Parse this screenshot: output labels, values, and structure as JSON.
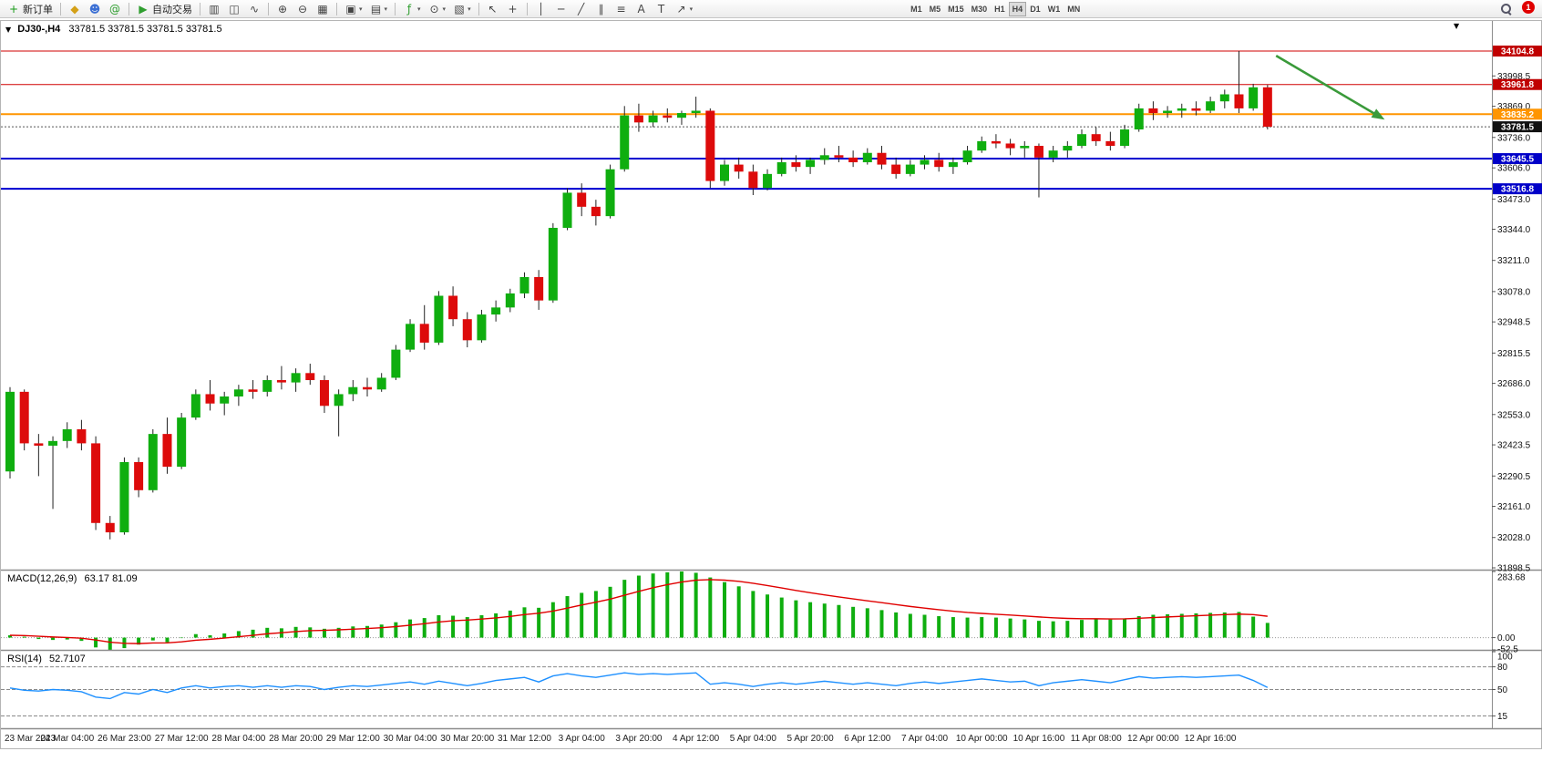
{
  "toolbar": {
    "groups": [
      [
        {
          "name": "new-order",
          "glyph": "+",
          "color": "#169a16",
          "label": "新订单"
        }
      ],
      [
        {
          "name": "ideas",
          "glyph": "◆",
          "color": "#d4a017"
        },
        {
          "name": "community",
          "glyph": "☻",
          "color": "#3b6fd4"
        },
        {
          "name": "mql5",
          "glyph": "@",
          "color": "#2f9e2f"
        }
      ],
      [
        {
          "name": "autotrade",
          "glyph": "▶",
          "color": "#2f9e2f",
          "label": "自动交易"
        }
      ],
      [
        {
          "name": "bar-chart",
          "glyph": "▥",
          "color": "#444444"
        },
        {
          "name": "candlestick-chart",
          "glyph": "◫",
          "color": "#444444"
        },
        {
          "name": "line-chart",
          "glyph": "∿",
          "color": "#444444"
        }
      ],
      [
        {
          "name": "zoom-in",
          "glyph": "⊕",
          "color": "#444444"
        },
        {
          "name": "zoom-out",
          "glyph": "⊖",
          "color": "#444444"
        },
        {
          "name": "tile-windows",
          "glyph": "▦",
          "color": "#444444"
        }
      ],
      [
        {
          "name": "new-chart",
          "glyph": "▣",
          "color": "#444444",
          "dd": true
        },
        {
          "name": "profiles",
          "glyph": "▤",
          "color": "#444444",
          "dd": true
        }
      ],
      [
        {
          "name": "indicators",
          "glyph": "ƒ",
          "color": "#2f9e2f",
          "dd": true
        },
        {
          "name": "periods",
          "glyph": "⊙",
          "color": "#444444",
          "dd": true
        },
        {
          "name": "templates",
          "glyph": "▧",
          "color": "#444444",
          "dd": true
        }
      ],
      [
        {
          "name": "cursor",
          "glyph": "↖",
          "color": "#444444"
        },
        {
          "name": "crosshair",
          "glyph": "+",
          "color": "#444444"
        }
      ],
      [
        {
          "name": "vertical-line",
          "glyph": "│",
          "color": "#444444"
        },
        {
          "name": "horizontal-line",
          "glyph": "─",
          "color": "#444444"
        },
        {
          "name": "trendline",
          "glyph": "╱",
          "color": "#444444"
        },
        {
          "name": "channel",
          "glyph": "∥",
          "color": "#444444"
        },
        {
          "name": "fibonacci",
          "glyph": "≡",
          "color": "#444444"
        },
        {
          "name": "text",
          "glyph": "A",
          "color": "#444444"
        },
        {
          "name": "text-label",
          "glyph": "T",
          "color": "#444444"
        },
        {
          "name": "arrows",
          "glyph": "↗",
          "color": "#444444",
          "dd": true
        }
      ]
    ],
    "timeframes": [
      "M1",
      "M5",
      "M15",
      "M30",
      "H1",
      "H4",
      "D1",
      "W1",
      "MN"
    ],
    "active_timeframe": "H4",
    "badge_count": "1"
  },
  "icons": {
    "collapse": "▼",
    "chart_shift": "▼"
  },
  "chart_header": {
    "title": "DJ30-,H4",
    "ohlc": "33781.5 33781.5 33781.5 33781.5"
  },
  "indicators": {
    "macd_label": "MACD(12,26,9)",
    "macd_values": "63.17 81.09",
    "rsi_label": "RSI(14)",
    "rsi_value": "52.7107"
  },
  "price_axis": {
    "ticks": [
      "33998.5",
      "33869.0",
      "33736.0",
      "33606.0",
      "33473.0",
      "33344.0",
      "33211.0",
      "33078.0",
      "32948.5",
      "32815.5",
      "32686.0",
      "32553.0",
      "32423.5",
      "32290.5",
      "32161.0",
      "32028.0",
      "31898.5"
    ],
    "badges": [
      {
        "label": "34104.8",
        "price": 34104.8,
        "color": "#c00000"
      },
      {
        "label": "33961.8",
        "price": 33961.8,
        "color": "#c00000"
      },
      {
        "label": "33835.2",
        "price": 33835.2,
        "color": "#ff9500"
      },
      {
        "label": "33781.5",
        "price": 33781.5,
        "color": "#111111"
      },
      {
        "label": "33645.5",
        "price": 33645.5,
        "color": "#0000c8"
      },
      {
        "label": "33516.8",
        "price": 33516.8,
        "color": "#0000c8"
      }
    ]
  },
  "macd_axis": [
    {
      "label": "283.68",
      "value": 283.68
    },
    {
      "label": "0.00",
      "value": 0
    },
    {
      "label": "-52.5",
      "value": -52.5
    }
  ],
  "rsi_axis": [
    {
      "label": "100",
      "value": 100
    },
    {
      "label": "80",
      "value": 80
    },
    {
      "label": "50",
      "value": 50
    },
    {
      "label": "15",
      "value": 15
    }
  ],
  "time_axis": [
    "23 Mar 2023",
    "24 Mar 04:00",
    "26 Mar 23:00",
    "27 Mar 12:00",
    "28 Mar 04:00",
    "28 Mar 20:00",
    "29 Mar 12:00",
    "30 Mar 04:00",
    "30 Mar 20:00",
    "31 Mar 12:00",
    "3 Apr 04:00",
    "3 Apr 20:00",
    "4 Apr 12:00",
    "5 Apr 04:00",
    "5 Apr 20:00",
    "6 Apr 12:00",
    "7 Apr 04:00",
    "10 Apr 00:00",
    "10 Apr 16:00",
    "11 Apr 08:00",
    "12 Apr 00:00",
    "12 Apr 16:00"
  ],
  "chart_data": {
    "type": "candlestick",
    "symbol": "DJ30-",
    "timeframe": "H4",
    "ohlc_current": [
      33781.5,
      33781.5,
      33781.5,
      33781.5
    ],
    "y_axis_range": [
      31898.5,
      34210
    ],
    "candles": [
      [
        32310,
        32670,
        32280,
        32650
      ],
      [
        32650,
        32660,
        32400,
        32430
      ],
      [
        32430,
        32470,
        32290,
        32420
      ],
      [
        32420,
        32460,
        32150,
        32440
      ],
      [
        32440,
        32520,
        32410,
        32490
      ],
      [
        32490,
        32530,
        32400,
        32430
      ],
      [
        32430,
        32460,
        32060,
        32090
      ],
      [
        32090,
        32120,
        32020,
        32050
      ],
      [
        32050,
        32370,
        32040,
        32350
      ],
      [
        32350,
        32370,
        32200,
        32230
      ],
      [
        32230,
        32490,
        32220,
        32470
      ],
      [
        32470,
        32540,
        32300,
        32330
      ],
      [
        32330,
        32560,
        32320,
        32540
      ],
      [
        32540,
        32660,
        32530,
        32640
      ],
      [
        32640,
        32700,
        32570,
        32600
      ],
      [
        32600,
        32650,
        32550,
        32630
      ],
      [
        32630,
        32680,
        32590,
        32660
      ],
      [
        32660,
        32700,
        32620,
        32650
      ],
      [
        32650,
        32720,
        32630,
        32700
      ],
      [
        32700,
        32760,
        32660,
        32690
      ],
      [
        32690,
        32750,
        32650,
        32730
      ],
      [
        32730,
        32770,
        32680,
        32700
      ],
      [
        32700,
        32720,
        32560,
        32590
      ],
      [
        32590,
        32660,
        32460,
        32640
      ],
      [
        32640,
        32700,
        32610,
        32670
      ],
      [
        32670,
        32710,
        32630,
        32660
      ],
      [
        32660,
        32730,
        32650,
        32710
      ],
      [
        32710,
        32850,
        32700,
        32830
      ],
      [
        32830,
        32960,
        32820,
        32940
      ],
      [
        32940,
        33020,
        32830,
        32860
      ],
      [
        32860,
        33080,
        32850,
        33060
      ],
      [
        33060,
        33100,
        32930,
        32960
      ],
      [
        32960,
        32990,
        32840,
        32870
      ],
      [
        32870,
        33000,
        32860,
        32980
      ],
      [
        32980,
        33040,
        32950,
        33010
      ],
      [
        33010,
        33090,
        32990,
        33070
      ],
      [
        33070,
        33160,
        33050,
        33140
      ],
      [
        33140,
        33170,
        33000,
        33040
      ],
      [
        33040,
        33370,
        33030,
        33350
      ],
      [
        33350,
        33520,
        33340,
        33500
      ],
      [
        33500,
        33540,
        33400,
        33440
      ],
      [
        33440,
        33470,
        33360,
        33400
      ],
      [
        33400,
        33620,
        33390,
        33600
      ],
      [
        33600,
        33870,
        33590,
        33830
      ],
      [
        33830,
        33880,
        33760,
        33800
      ],
      [
        33800,
        33850,
        33780,
        33830
      ],
      [
        33830,
        33860,
        33800,
        33820
      ],
      [
        33820,
        33850,
        33790,
        33840
      ],
      [
        33840,
        33910,
        33820,
        33850
      ],
      [
        33850,
        33860,
        33520,
        33550
      ],
      [
        33550,
        33640,
        33530,
        33620
      ],
      [
        33620,
        33650,
        33560,
        33590
      ],
      [
        33590,
        33620,
        33490,
        33520
      ],
      [
        33520,
        33600,
        33510,
        33580
      ],
      [
        33580,
        33650,
        33570,
        33630
      ],
      [
        33630,
        33660,
        33590,
        33610
      ],
      [
        33610,
        33650,
        33580,
        33640
      ],
      [
        33640,
        33690,
        33620,
        33660
      ],
      [
        33660,
        33700,
        33630,
        33650
      ],
      [
        33650,
        33680,
        33610,
        33630
      ],
      [
        33630,
        33690,
        33620,
        33670
      ],
      [
        33670,
        33700,
        33600,
        33620
      ],
      [
        33620,
        33650,
        33560,
        33580
      ],
      [
        33580,
        33640,
        33570,
        33620
      ],
      [
        33620,
        33660,
        33600,
        33640
      ],
      [
        33640,
        33670,
        33590,
        33610
      ],
      [
        33610,
        33650,
        33580,
        33630
      ],
      [
        33630,
        33700,
        33620,
        33680
      ],
      [
        33680,
        33740,
        33670,
        33720
      ],
      [
        33720,
        33750,
        33690,
        33710
      ],
      [
        33710,
        33730,
        33660,
        33690
      ],
      [
        33690,
        33720,
        33650,
        33700
      ],
      [
        33700,
        33710,
        33480,
        33650
      ],
      [
        33650,
        33700,
        33630,
        33680
      ],
      [
        33680,
        33720,
        33650,
        33700
      ],
      [
        33700,
        33770,
        33690,
        33750
      ],
      [
        33750,
        33780,
        33700,
        33720
      ],
      [
        33720,
        33760,
        33680,
        33700
      ],
      [
        33700,
        33790,
        33690,
        33770
      ],
      [
        33770,
        33880,
        33760,
        33860
      ],
      [
        33860,
        33890,
        33810,
        33840
      ],
      [
        33840,
        33870,
        33820,
        33850
      ],
      [
        33850,
        33880,
        33820,
        33860
      ],
      [
        33860,
        33890,
        33830,
        33850
      ],
      [
        33850,
        33910,
        33840,
        33890
      ],
      [
        33890,
        33940,
        33860,
        33920
      ],
      [
        33920,
        34104.8,
        33840,
        33860
      ],
      [
        33860,
        33965,
        33850,
        33950
      ],
      [
        33950,
        33960,
        33770,
        33781.5
      ]
    ],
    "hlines": [
      {
        "price": 34104.8,
        "color": "#d00000",
        "width": 1
      },
      {
        "price": 33961.8,
        "color": "#d00000",
        "width": 1
      },
      {
        "price": 33835.2,
        "color": "#ff9500",
        "width": 2
      },
      {
        "price": 33645.5,
        "color": "#0000d0",
        "width": 2
      },
      {
        "price": 33516.8,
        "color": "#0000d0",
        "width": 2
      }
    ],
    "current_price": 33781.5,
    "macd": {
      "range": [
        -52.5,
        283.68
      ],
      "label_main": 63.17,
      "label_signal": 81.09,
      "histogram": [
        10,
        4,
        -6,
        -10,
        -8,
        -14,
        -42,
        -56,
        -45,
        -30,
        -12,
        -20,
        0,
        15,
        10,
        18,
        28,
        34,
        42,
        40,
        46,
        44,
        38,
        42,
        48,
        50,
        56,
        66,
        78,
        84,
        96,
        94,
        88,
        96,
        104,
        116,
        130,
        128,
        152,
        178,
        192,
        200,
        218,
        248,
        266,
        275,
        280,
        283.68,
        278,
        258,
        238,
        220,
        200,
        185,
        172,
        160,
        152,
        146,
        140,
        132,
        126,
        118,
        108,
        102,
        98,
        92,
        88,
        86,
        88,
        86,
        82,
        78,
        72,
        70,
        72,
        76,
        80,
        78,
        82,
        92,
        98,
        100,
        102,
        104,
        106,
        108,
        110,
        90,
        63.17
      ]
    },
    "rsi": {
      "levels": [
        80,
        50,
        15
      ],
      "current": 52.7107,
      "values": [
        52,
        49,
        48,
        50,
        49,
        47,
        40,
        38,
        46,
        44,
        50,
        46,
        52,
        55,
        52,
        54,
        55,
        53,
        55,
        53,
        55,
        54,
        50,
        53,
        55,
        54,
        56,
        58,
        60,
        57,
        61,
        58,
        55,
        58,
        62,
        64,
        66,
        60,
        68,
        71,
        68,
        66,
        69,
        72,
        70,
        71,
        70,
        71,
        72,
        57,
        59,
        57,
        54,
        57,
        59,
        57,
        59,
        61,
        59,
        57,
        59,
        57,
        55,
        58,
        60,
        58,
        60,
        62,
        64,
        62,
        60,
        61,
        55,
        59,
        61,
        63,
        61,
        59,
        63,
        67,
        65,
        66,
        67,
        66,
        67,
        68,
        69,
        62,
        52.71
      ]
    },
    "arrow": {
      "from_bar": 88.6,
      "from_price": 34085,
      "to_bar": 96.2,
      "to_price": 33812
    },
    "colors": {
      "bull": "#0fae0f",
      "bear": "#dd0b0b",
      "wick": "#222222",
      "macd_hist": "#0fae0f",
      "macd_signal": "#e00000",
      "rsi_line": "#1e90ff",
      "current_line": "#555555",
      "arrow": "#3a9a3a"
    }
  }
}
